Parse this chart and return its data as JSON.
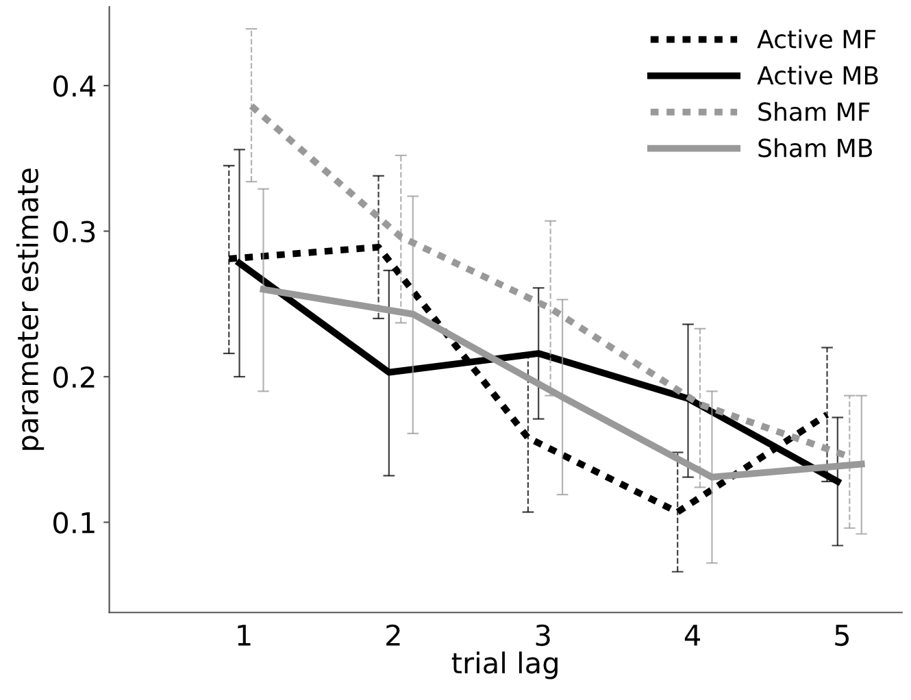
{
  "chart_data": {
    "type": "line",
    "xlabel": "trial lag",
    "ylabel": "parameter estimate",
    "xlim": [
      0.1,
      5.4
    ],
    "ylim": [
      0.038,
      0.454
    ],
    "xticks": [
      1,
      2,
      3,
      4,
      5
    ],
    "yticks": [
      0.1,
      0.2,
      0.3,
      0.4
    ],
    "grid": false,
    "legend": "top right",
    "marker": "none",
    "series": [
      {
        "name": "Active MF",
        "color": "#000000",
        "line_style": "dotted",
        "x": [
          0.9,
          1.9,
          2.9,
          3.9,
          4.9
        ],
        "values": [
          0.281,
          0.289,
          0.158,
          0.107,
          0.174
        ],
        "errors": [
          [
            0.216,
            0.345
          ],
          [
            0.24,
            0.338
          ],
          [
            0.107,
            0.214
          ],
          [
            0.066,
            0.148
          ],
          [
            0.128,
            0.22
          ]
        ]
      },
      {
        "name": "Active MB",
        "color": "#000000",
        "line_style": "solid",
        "x": [
          0.97,
          1.97,
          2.97,
          3.97,
          4.97
        ],
        "values": [
          0.278,
          0.203,
          0.216,
          0.185,
          0.128
        ],
        "errors": [
          [
            0.2,
            0.356
          ],
          [
            0.132,
            0.273
          ],
          [
            0.171,
            0.261
          ],
          [
            0.131,
            0.236
          ],
          [
            0.084,
            0.172
          ]
        ]
      },
      {
        "name": "Sham MF",
        "color": "#999999",
        "line_style": "dotted",
        "x": [
          1.05,
          2.05,
          3.05,
          4.05,
          5.05
        ],
        "values": [
          0.386,
          0.296,
          0.247,
          0.181,
          0.145
        ],
        "errors": [
          [
            0.334,
            0.439
          ],
          [
            0.237,
            0.352
          ],
          [
            0.187,
            0.307
          ],
          [
            0.124,
            0.233
          ],
          [
            0.096,
            0.187
          ]
        ]
      },
      {
        "name": "Sham MB",
        "color": "#999999",
        "line_style": "solid",
        "x": [
          1.13,
          2.13,
          3.13,
          4.13,
          5.13
        ],
        "values": [
          0.26,
          0.243,
          0.186,
          0.131,
          0.14
        ],
        "errors": [
          [
            0.19,
            0.329
          ],
          [
            0.161,
            0.324
          ],
          [
            0.119,
            0.253
          ],
          [
            0.072,
            0.19
          ],
          [
            0.092,
            0.187
          ]
        ]
      }
    ]
  }
}
